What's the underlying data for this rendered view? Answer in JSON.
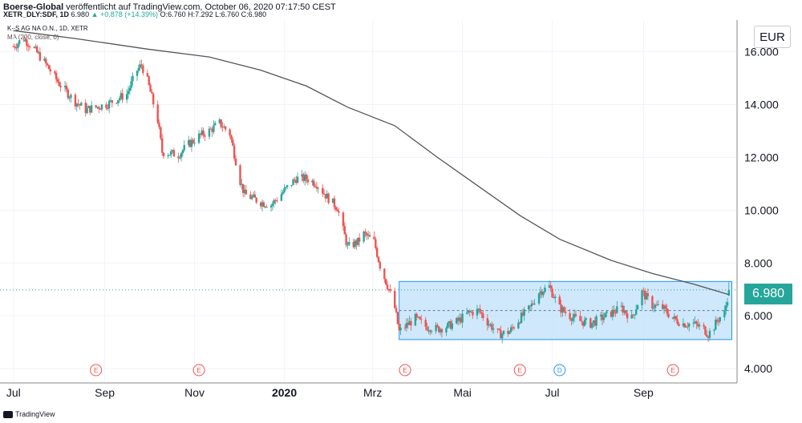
{
  "header": {
    "publisher": "Boerse-Global",
    "published_text": "veröffentlicht auf TradingView.com, October 06, 2020 07:17:50 CEST"
  },
  "legend": {
    "symbol": "XETR_DLY:SDF, 1D",
    "close_value": "6.980",
    "change": "▲ +0.878 (+14.39%)",
    "ohlc": "O:6.760 H:7.292 L:6.760 C:6.980",
    "instrument": "K+S AG NA O.N., 1D, XETR",
    "indicator": "MA (200, close, 0)"
  },
  "currency": "EUR",
  "footer": {
    "brand": "TradingView"
  },
  "colors": {
    "up": "#26a69a",
    "down": "#ef5350",
    "ma": "#555555",
    "box": "#bbdefb",
    "box_edge": "#2196f3",
    "event": "#ef5350",
    "dividend": "#2196f3"
  },
  "chart_data": {
    "type": "candlestick",
    "title": "K+S AG NA O.N., 1D, XETR",
    "ylim": [
      3.7,
      17.2
    ],
    "y_ticks": [
      "4.000",
      "6.000",
      "8.000",
      "10.000",
      "12.000",
      "14.000",
      "16.000"
    ],
    "x_ticks": [
      "Jul",
      "Sep",
      "Nov",
      "2020",
      "Mrz",
      "Mai",
      "Jul",
      "Sep"
    ],
    "last_price": "6.980",
    "price_series": [
      [
        "2019-07-01",
        16.2
      ],
      [
        "2019-07-08",
        16.5
      ],
      [
        "2019-07-15",
        16.1
      ],
      [
        "2019-07-22",
        15.6
      ],
      [
        "2019-08-01",
        14.8
      ],
      [
        "2019-08-12",
        14.1
      ],
      [
        "2019-08-19",
        13.8
      ],
      [
        "2019-08-26",
        13.9
      ],
      [
        "2019-09-02",
        14.0
      ],
      [
        "2019-09-09",
        14.2
      ],
      [
        "2019-09-16",
        14.4
      ],
      [
        "2019-09-23",
        15.3
      ],
      [
        "2019-09-26",
        15.5
      ],
      [
        "2019-09-30",
        14.9
      ],
      [
        "2019-10-07",
        13.4
      ],
      [
        "2019-10-10",
        12.2
      ],
      [
        "2019-10-21",
        12.1
      ],
      [
        "2019-10-28",
        12.5
      ],
      [
        "2019-11-04",
        12.8
      ],
      [
        "2019-11-11",
        13.0
      ],
      [
        "2019-11-18",
        13.3
      ],
      [
        "2019-11-25",
        12.9
      ],
      [
        "2019-12-02",
        11.1
      ],
      [
        "2019-12-05",
        10.6
      ],
      [
        "2019-12-16",
        10.3
      ],
      [
        "2019-12-23",
        10.2
      ],
      [
        "2020-01-02",
        10.8
      ],
      [
        "2020-01-09",
        11.2
      ],
      [
        "2020-01-16",
        11.2
      ],
      [
        "2020-01-23",
        11.0
      ],
      [
        "2020-01-30",
        10.5
      ],
      [
        "2020-02-06",
        10.1
      ],
      [
        "2020-02-13",
        8.6
      ],
      [
        "2020-02-20",
        8.8
      ],
      [
        "2020-02-24",
        9.1
      ],
      [
        "2020-03-02",
        8.8
      ],
      [
        "2020-03-06",
        7.9
      ],
      [
        "2020-03-12",
        7.0
      ],
      [
        "2020-03-16",
        6.3
      ],
      [
        "2020-03-19",
        5.4
      ],
      [
        "2020-03-23",
        5.6
      ],
      [
        "2020-03-30",
        5.9
      ],
      [
        "2020-04-06",
        5.6
      ],
      [
        "2020-04-14",
        5.5
      ],
      [
        "2020-04-21",
        5.6
      ],
      [
        "2020-04-28",
        5.8
      ],
      [
        "2020-05-05",
        6.1
      ],
      [
        "2020-05-12",
        6.2
      ],
      [
        "2020-05-19",
        5.7
      ],
      [
        "2020-05-26",
        5.3
      ],
      [
        "2020-06-02",
        5.4
      ],
      [
        "2020-06-09",
        5.9
      ],
      [
        "2020-06-16",
        6.3
      ],
      [
        "2020-06-22",
        6.9
      ],
      [
        "2020-06-29",
        7.1
      ],
      [
        "2020-07-06",
        6.3
      ],
      [
        "2020-07-13",
        6.0
      ],
      [
        "2020-07-20",
        5.8
      ],
      [
        "2020-07-27",
        5.7
      ],
      [
        "2020-08-03",
        5.9
      ],
      [
        "2020-08-10",
        6.1
      ],
      [
        "2020-08-17",
        6.3
      ],
      [
        "2020-08-24",
        5.9
      ],
      [
        "2020-08-31",
        6.9
      ],
      [
        "2020-09-07",
        6.4
      ],
      [
        "2020-09-14",
        6.3
      ],
      [
        "2020-09-21",
        5.9
      ],
      [
        "2020-09-28",
        5.7
      ],
      [
        "2020-10-05",
        5.7
      ],
      [
        "2020-10-12",
        5.5
      ],
      [
        "2020-10-15",
        5.3
      ],
      [
        "2020-10-19",
        5.6
      ],
      [
        "2020-10-22",
        5.9
      ],
      [
        "2020-10-26",
        6.1
      ],
      [
        "2020-10-29",
        6.98
      ]
    ],
    "ma_series": [
      [
        "2019-07-01",
        16.8
      ],
      [
        "2019-08-12",
        16.5
      ],
      [
        "2019-09-30",
        16.1
      ],
      [
        "2019-11-11",
        15.8
      ],
      [
        "2019-12-16",
        15.3
      ],
      [
        "2020-01-16",
        14.7
      ],
      [
        "2020-02-13",
        13.9
      ],
      [
        "2020-03-16",
        13.2
      ],
      [
        "2020-04-14",
        12.0
      ],
      [
        "2020-05-12",
        10.9
      ],
      [
        "2020-06-09",
        9.8
      ],
      [
        "2020-07-06",
        8.9
      ],
      [
        "2020-08-10",
        8.1
      ],
      [
        "2020-09-07",
        7.6
      ],
      [
        "2020-10-05",
        7.2
      ],
      [
        "2020-10-29",
        6.8
      ]
    ],
    "range_box": {
      "from": "2020-03-19",
      "to": "2020-10-31",
      "low": 5.1,
      "high": 7.3,
      "mid": 6.2
    },
    "events": [
      {
        "date": "2019-08-26",
        "label": "E"
      },
      {
        "date": "2019-11-04",
        "label": "E"
      },
      {
        "date": "2020-03-23",
        "label": "E"
      },
      {
        "date": "2020-06-09",
        "label": "E"
      },
      {
        "date": "2020-07-06",
        "label": "D"
      },
      {
        "date": "2020-09-21",
        "label": "E"
      }
    ],
    "grid": true
  }
}
